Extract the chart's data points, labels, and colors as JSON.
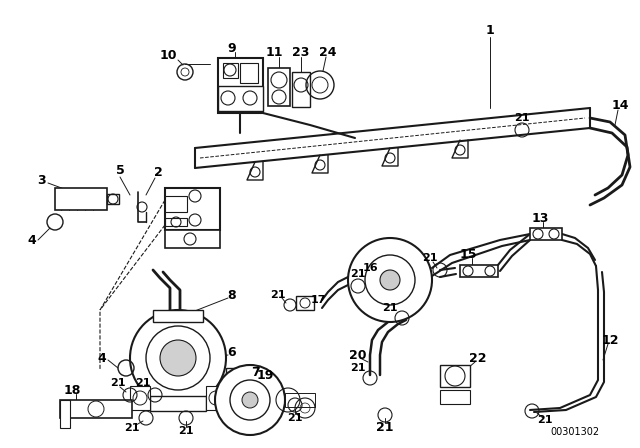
{
  "bg_color": "#ffffff",
  "line_color": "#1a1a1a",
  "fig_width": 6.4,
  "fig_height": 4.48,
  "dpi": 100,
  "watermark": "00301302"
}
